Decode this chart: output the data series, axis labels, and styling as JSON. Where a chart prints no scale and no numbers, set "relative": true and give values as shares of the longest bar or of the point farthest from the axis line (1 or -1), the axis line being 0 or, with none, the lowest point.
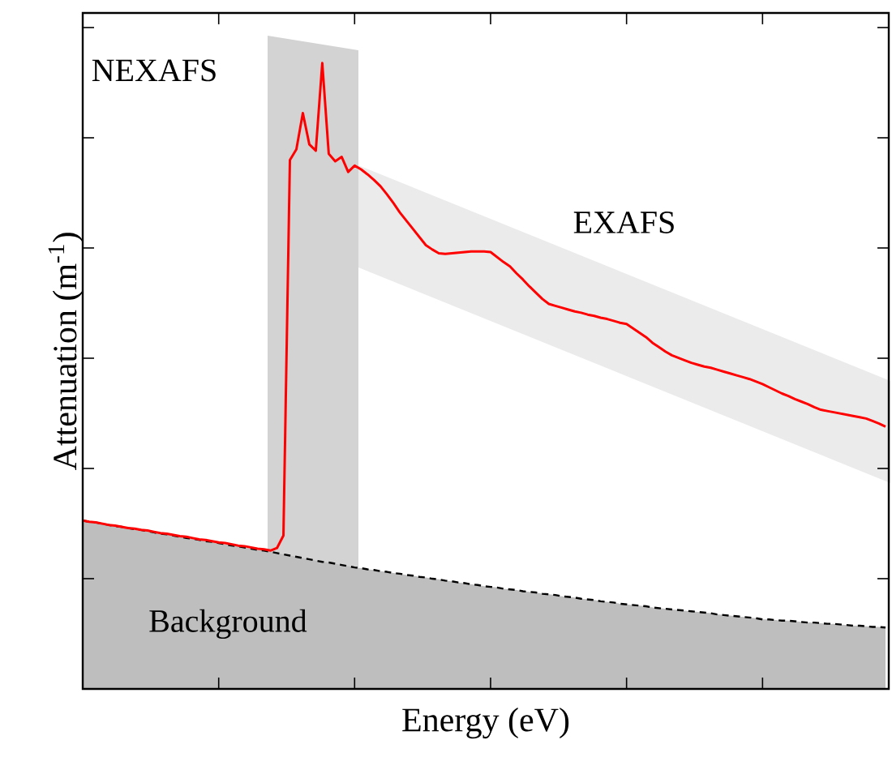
{
  "chart_data": {
    "type": "line",
    "relative": true,
    "xlabel": "Energy (eV)",
    "ylabel": "Attenuation (m$^{-1}$)",
    "annotations": [
      "NEXAFS",
      "EXAFS"
    ],
    "categories": [
      null,
      null,
      null,
      null,
      null,
      null,
      null,
      null,
      null,
      null,
      null,
      null,
      null,
      null,
      null,
      null,
      null,
      null,
      null,
      null,
      null,
      null,
      null,
      null,
      null,
      null,
      null,
      null,
      null,
      null,
      null,
      null,
      null,
      null,
      null,
      null,
      null,
      null,
      null,
      null,
      null,
      null,
      null,
      null,
      null,
      null,
      null,
      null,
      null,
      null,
      null,
      null,
      null,
      null,
      null,
      null,
      null,
      null,
      null,
      null,
      null,
      null,
      null,
      null,
      null,
      null,
      null,
      null,
      null,
      null,
      null,
      null,
      null,
      null,
      null,
      null,
      null,
      null,
      null,
      null,
      null,
      null,
      null,
      null,
      null,
      null,
      null,
      null,
      null,
      null,
      null,
      null,
      null,
      null,
      null,
      null,
      null,
      null,
      null,
      null,
      null,
      null,
      null,
      null,
      null,
      null,
      null,
      null,
      null,
      null,
      null,
      null,
      null,
      null,
      null,
      null,
      null,
      null,
      null,
      null,
      null,
      null,
      null,
      null,
      null
    ],
    "series": [
      {
        "type": "area",
        "name": "Background",
        "color": "#bebebe",
        "line_style": "dashed",
        "values": [
          0.269,
          0.267,
          0.266,
          0.264,
          0.262,
          0.26,
          0.259,
          0.257,
          0.255,
          0.254,
          0.252,
          0.25,
          0.248,
          0.247,
          0.245,
          0.243,
          0.241,
          0.24,
          0.238,
          0.236,
          0.235,
          0.233,
          0.231,
          0.229,
          0.228,
          0.226,
          0.224,
          0.222,
          0.221,
          0.219,
          0.217,
          0.215,
          0.213,
          0.211,
          0.209,
          0.207,
          0.205,
          0.203,
          0.202,
          0.2,
          0.198,
          0.196,
          0.194,
          0.193,
          0.191,
          0.19,
          0.188,
          0.187,
          0.185,
          0.184,
          0.182,
          0.181,
          0.179,
          0.178,
          0.176,
          0.175,
          0.173,
          0.172,
          0.17,
          0.169,
          0.167,
          0.166,
          0.164,
          0.163,
          0.162,
          0.16,
          0.159,
          0.158,
          0.156,
          0.155,
          0.154,
          0.152,
          0.151,
          0.15,
          0.148,
          0.147,
          0.146,
          0.144,
          0.143,
          0.142,
          0.14,
          0.139,
          0.138,
          0.136,
          0.135,
          0.134,
          0.133,
          0.132,
          0.13,
          0.129,
          0.128,
          0.127,
          0.126,
          0.125,
          0.124,
          0.123,
          0.122,
          0.121,
          0.119,
          0.118,
          0.117,
          0.116,
          0.115,
          0.114,
          0.113,
          0.111,
          0.111,
          0.11,
          0.109,
          0.109,
          0.108,
          0.107,
          0.106,
          0.106,
          0.105,
          0.104,
          0.104,
          0.103,
          0.102,
          0.101,
          0.101,
          0.1,
          0.099,
          0.099,
          0.098
        ]
      },
      {
        "color": "#ff0000",
        "line_style": "solid",
        "values": [
          0.269,
          0.267,
          0.266,
          0.264,
          0.262,
          0.261,
          0.259,
          0.257,
          0.256,
          0.254,
          0.253,
          0.251,
          0.249,
          0.248,
          0.246,
          0.244,
          0.243,
          0.241,
          0.239,
          0.238,
          0.236,
          0.234,
          0.233,
          0.231,
          0.229,
          0.228,
          0.226,
          0.224,
          0.223,
          0.221,
          0.225,
          0.245,
          0.845,
          0.862,
          0.92,
          0.87,
          0.86,
          1.0,
          0.855,
          0.843,
          0.85,
          0.826,
          0.836,
          0.83,
          0.822,
          0.813,
          0.803,
          0.79,
          0.776,
          0.761,
          0.748,
          0.735,
          0.722,
          0.709,
          0.702,
          0.696,
          0.695,
          0.696,
          0.697,
          0.698,
          0.699,
          0.699,
          0.699,
          0.698,
          0.69,
          0.682,
          0.675,
          0.664,
          0.654,
          0.643,
          0.633,
          0.623,
          0.615,
          0.612,
          0.609,
          0.606,
          0.603,
          0.601,
          0.598,
          0.596,
          0.593,
          0.591,
          0.588,
          0.585,
          0.583,
          0.576,
          0.569,
          0.562,
          0.553,
          0.546,
          0.539,
          0.533,
          0.529,
          0.525,
          0.521,
          0.518,
          0.515,
          0.513,
          0.51,
          0.507,
          0.504,
          0.501,
          0.498,
          0.495,
          0.491,
          0.487,
          0.482,
          0.477,
          0.472,
          0.468,
          0.463,
          0.459,
          0.455,
          0.45,
          0.446,
          0.444,
          0.442,
          0.44,
          0.438,
          0.436,
          0.434,
          0.432,
          0.428,
          0.424,
          0.419
        ]
      }
    ]
  }
}
